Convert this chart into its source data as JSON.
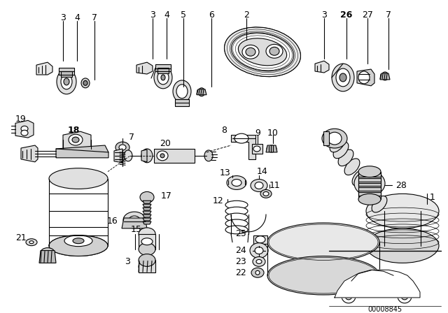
{
  "bg_color": "#ffffff",
  "part_number": "00008845",
  "lw": 0.8,
  "color": "#000000"
}
